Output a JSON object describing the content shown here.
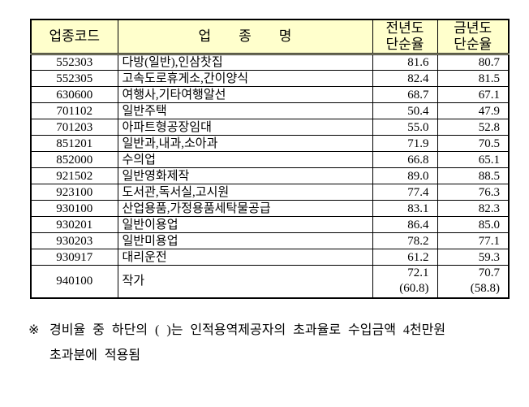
{
  "colors": {
    "header_bg": "#FFFFCC",
    "border": "#000000",
    "text": "#000000"
  },
  "table": {
    "headers": {
      "code": "업종코드",
      "name": "업        종        명",
      "prev_line1": "전년도",
      "prev_line2": "단순율",
      "curr_line1": "금년도",
      "curr_line2": "단순율"
    },
    "rows": [
      {
        "code": "552303",
        "name": "다방(일반),인삼찻집",
        "prev": "81.6",
        "curr": "80.7"
      },
      {
        "code": "552305",
        "name": "고속도로휴게소,간이양식",
        "prev": "82.4",
        "curr": "81.5"
      },
      {
        "code": "630600",
        "name": "여행사,기타여행알선",
        "prev": "68.7",
        "curr": "67.1"
      },
      {
        "code": "701102",
        "name": "일반주택",
        "prev": "50.4",
        "curr": "47.9"
      },
      {
        "code": "701203",
        "name": "아파트형공장임대",
        "prev": "55.0",
        "curr": "52.8"
      },
      {
        "code": "851201",
        "name": "일반과,내과,소아과",
        "prev": "71.9",
        "curr": "70.5"
      },
      {
        "code": "852000",
        "name": "수의업",
        "prev": "66.8",
        "curr": "65.1"
      },
      {
        "code": "921502",
        "name": "일반영화제작",
        "prev": "89.0",
        "curr": "88.5"
      },
      {
        "code": "923100",
        "name": "도서관,독서실,고시원",
        "prev": "77.4",
        "curr": "76.3"
      },
      {
        "code": "930100",
        "name": "산업용품,가정용품세탁물공급",
        "prev": "83.1",
        "curr": "82.3"
      },
      {
        "code": "930201",
        "name": "일반이용업",
        "prev": "86.4",
        "curr": "85.0"
      },
      {
        "code": "930203",
        "name": "일반미용업",
        "prev": "78.2",
        "curr": "77.1"
      },
      {
        "code": "930917",
        "name": "대리운전",
        "prev": "61.2",
        "curr": "59.3"
      },
      {
        "code": "940100",
        "name": "작가",
        "prev": "72.1",
        "prev_note": "(60.8)",
        "curr": "70.7",
        "curr_note": "(58.8)"
      }
    ]
  },
  "footnote": {
    "marker": "※",
    "line1": "경비율 중 하단의 (   )는 인적용역제공자의 초과율로 수입금액 4천만원",
    "line2": "초과분에 적용됨"
  }
}
